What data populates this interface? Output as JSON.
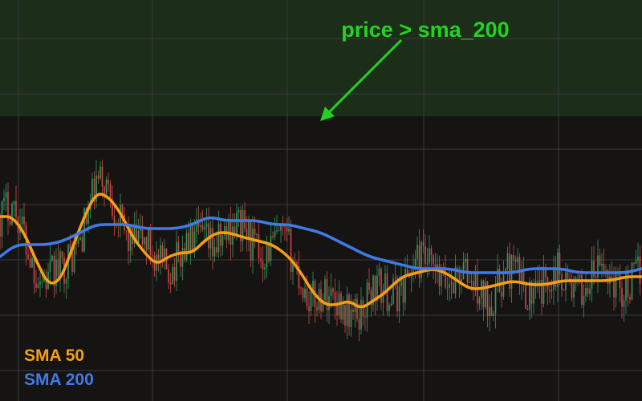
{
  "chart_data": {
    "type": "candlestick",
    "background": "#161313",
    "grid": true,
    "grid_color": "#3a3a3a",
    "highlight_zone": {
      "label": "price > sma_200",
      "color": "#1c2e1a",
      "text_color": "#22d41e"
    },
    "annotation": {
      "text": "price > sma_200",
      "color": "#22d41e"
    },
    "up_color": "#2e9e5e",
    "down_color": "#d04848",
    "ylim": [
      0,
      100
    ],
    "zone_y_min": 71,
    "series": [
      {
        "name": "SMA 50",
        "color": "#f59e16",
        "x": [
          0,
          15,
          30,
          45,
          60,
          75,
          90,
          105,
          120,
          135,
          150,
          165,
          180,
          195,
          210,
          225,
          240,
          255,
          270,
          285,
          300,
          320,
          340,
          360,
          375,
          390,
          405,
          420,
          435,
          450,
          465,
          480,
          500,
          520,
          540,
          555,
          570,
          585,
          600,
          620,
          640,
          660,
          680,
          700,
          720,
          740,
          760,
          780,
          800
        ],
        "values": [
          46,
          46,
          42,
          35,
          29,
          30,
          38,
          46,
          52,
          51,
          47,
          41,
          37,
          34,
          36,
          37,
          37,
          40,
          42,
          42,
          41,
          40,
          39,
          36,
          32,
          27,
          24,
          24,
          25,
          23,
          25,
          27,
          31,
          32,
          33,
          32,
          30,
          28,
          28,
          29,
          30,
          29,
          29,
          30,
          30,
          30,
          30,
          31,
          31
        ]
      },
      {
        "name": "SMA 200",
        "color": "#3f7be8",
        "x": [
          0,
          20,
          40,
          60,
          80,
          100,
          120,
          140,
          160,
          180,
          200,
          220,
          240,
          260,
          280,
          300,
          320,
          340,
          360,
          380,
          400,
          420,
          440,
          460,
          480,
          500,
          520,
          540,
          560,
          580,
          600,
          620,
          640,
          660,
          680,
          700,
          720,
          740,
          760,
          780,
          800
        ],
        "values": [
          36,
          39,
          39,
          39,
          40,
          42,
          44,
          44,
          44,
          43,
          43,
          43,
          44,
          46,
          45,
          45,
          45,
          44,
          44,
          43,
          42,
          40,
          38,
          36,
          35,
          34,
          33,
          33,
          33,
          32,
          32,
          32,
          32,
          33,
          33,
          33,
          32,
          32,
          32,
          32,
          33
        ]
      }
    ],
    "legend": [
      {
        "label": "SMA 50",
        "color": "#f59e16"
      },
      {
        "label": "SMA 200",
        "color": "#3f7be8"
      }
    ],
    "legend_position": "bottom-left"
  }
}
